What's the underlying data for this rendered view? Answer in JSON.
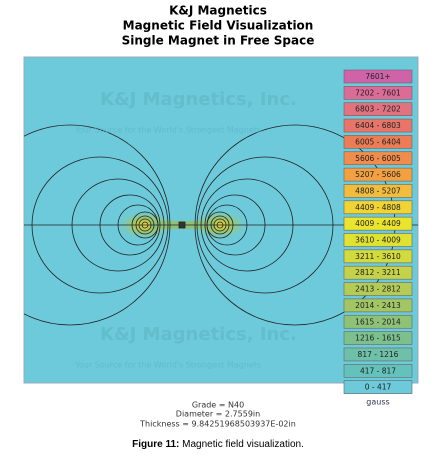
{
  "header": {
    "lines": [
      "K&J Magnetics",
      "Magnetic Field Visualization",
      "Single Magnet in Free Space"
    ]
  },
  "watermark": {
    "name": "K&J Magnetics, Inc.",
    "slogan": "Your Source for the World's Strongest Magnets"
  },
  "legend": {
    "items": [
      {
        "label": "7601+",
        "color": "#d062a8"
      },
      {
        "label": "7202 - 7601",
        "color": "#dc6c96"
      },
      {
        "label": "6803 - 7202",
        "color": "#e27280"
      },
      {
        "label": "6404 - 6803",
        "color": "#e8746a"
      },
      {
        "label": "6005 - 6404",
        "color": "#ec7c56"
      },
      {
        "label": "5606 - 6005",
        "color": "#f08c4c"
      },
      {
        "label": "5207 - 5606",
        "color": "#f2a042"
      },
      {
        "label": "4808 - 5207",
        "color": "#f2bc3c"
      },
      {
        "label": "4409 - 4808",
        "color": "#f0d434"
      },
      {
        "label": "4009 - 4409",
        "color": "#eae42c"
      },
      {
        "label": "3610 - 4009",
        "color": "#e0e232"
      },
      {
        "label": "3211 - 3610",
        "color": "#d2da3e"
      },
      {
        "label": "2812 - 3211",
        "color": "#c4d24a"
      },
      {
        "label": "2413 - 2812",
        "color": "#b4cc56"
      },
      {
        "label": "2014 - 2413",
        "color": "#a2c664"
      },
      {
        "label": "1615 - 2014",
        "color": "#8ec276"
      },
      {
        "label": "1216 - 1615",
        "color": "#7cc08e"
      },
      {
        "label": "817 - 1216",
        "color": "#6ec0a8"
      },
      {
        "label": "417 - 817",
        "color": "#64c2bc"
      },
      {
        "label": "0 - 417",
        "color": "#6ccadb"
      }
    ],
    "unit": "gauss"
  },
  "footer": {
    "lines": [
      "Grade = N40",
      "Diameter = 2.7559in",
      "Thickness = 9.84251968503937E-02in"
    ]
  },
  "caption": {
    "label": "Figure 11:",
    "text": "Magnetic field visualization."
  }
}
